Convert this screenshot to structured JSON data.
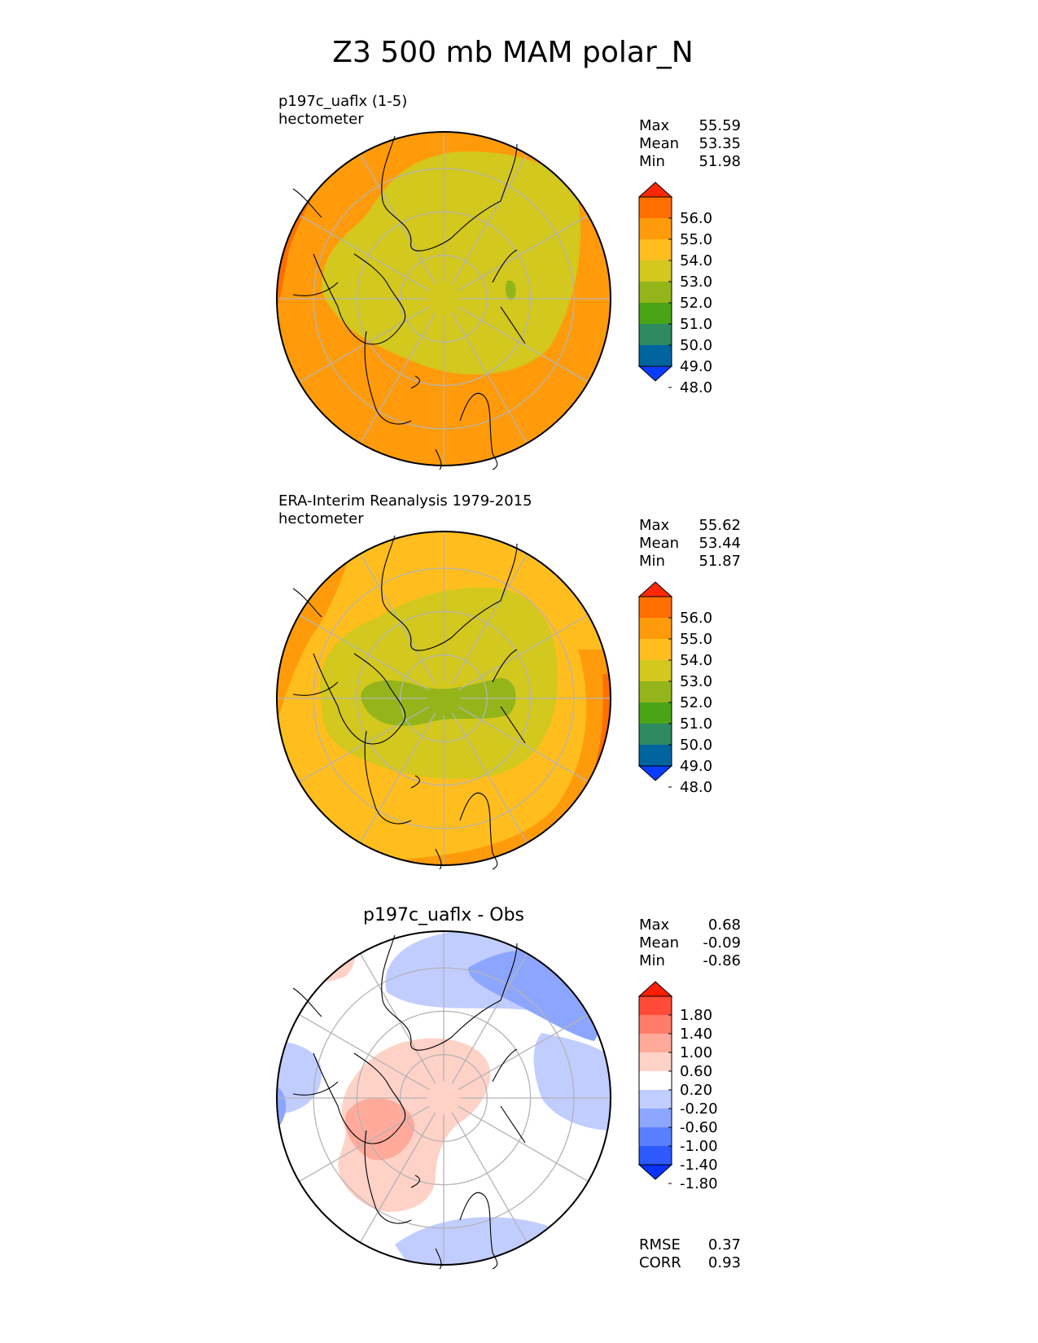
{
  "figure": {
    "title": "Z3 500 mb MAM polar_N"
  },
  "colors": {
    "abs_levels": [
      "#0a3cff",
      "#00649e",
      "#2e8a60",
      "#4aa516",
      "#93b51a",
      "#d2c81e",
      "#ffbe1e",
      "#ff9b0a",
      "#ff6e00",
      "#ff2800"
    ],
    "diff_levels": [
      "#0a32ff",
      "#2d59ff",
      "#587fff",
      "#8ca6ff",
      "#c2cdff",
      "#ffffff",
      "#ffd2c8",
      "#ffaa9b",
      "#ff7c6a",
      "#ff4b37",
      "#ff1e00"
    ],
    "grid": "#b4b4b4",
    "coast": "#000000"
  },
  "chart_data": [
    {
      "type": "heatmap",
      "projection": "north-polar-stereographic",
      "title": "p197c_uaflx (1-5)",
      "units": "hectometer",
      "stats": {
        "max": "55.59",
        "mean": "53.35",
        "min": "51.98"
      },
      "stats_labels": [
        "Max",
        "Mean",
        "Min"
      ],
      "colorbar_ticks": [
        "56.0",
        "55.0",
        "54.0",
        "53.0",
        "52.0",
        "51.0",
        "50.0",
        "49.0",
        "48.0"
      ],
      "contour_levels": [
        48,
        49,
        50,
        51,
        52,
        53,
        54,
        55,
        56
      ],
      "range": [
        47,
        57
      ]
    },
    {
      "type": "heatmap",
      "projection": "north-polar-stereographic",
      "title": "ERA-Interim Reanalysis 1979-2015",
      "units": "hectometer",
      "stats": {
        "max": "55.62",
        "mean": "53.44",
        "min": "51.87"
      },
      "stats_labels": [
        "Max",
        "Mean",
        "Min"
      ],
      "colorbar_ticks": [
        "56.0",
        "55.0",
        "54.0",
        "53.0",
        "52.0",
        "51.0",
        "50.0",
        "49.0",
        "48.0"
      ],
      "contour_levels": [
        48,
        49,
        50,
        51,
        52,
        53,
        54,
        55,
        56
      ],
      "range": [
        47,
        57
      ]
    },
    {
      "type": "heatmap",
      "projection": "north-polar-stereographic",
      "title": "p197c_uaflx - Obs",
      "stats": {
        "max": "0.68",
        "mean": "-0.09",
        "min": "-0.86"
      },
      "stats_labels": [
        "Max",
        "Mean",
        "Min"
      ],
      "colorbar_ticks": [
        "1.80",
        "1.40",
        "1.00",
        "0.60",
        "0.20",
        "-0.20",
        "-0.60",
        "-1.00",
        "-1.40",
        "-1.80"
      ],
      "contour_levels": [
        -1.8,
        -1.4,
        -1.0,
        -0.6,
        -0.2,
        0.2,
        0.6,
        1.0,
        1.4,
        1.8
      ],
      "metrics": {
        "rmse": "0.37",
        "corr": "0.93"
      },
      "metrics_labels": [
        "RMSE",
        "CORR"
      ]
    }
  ]
}
